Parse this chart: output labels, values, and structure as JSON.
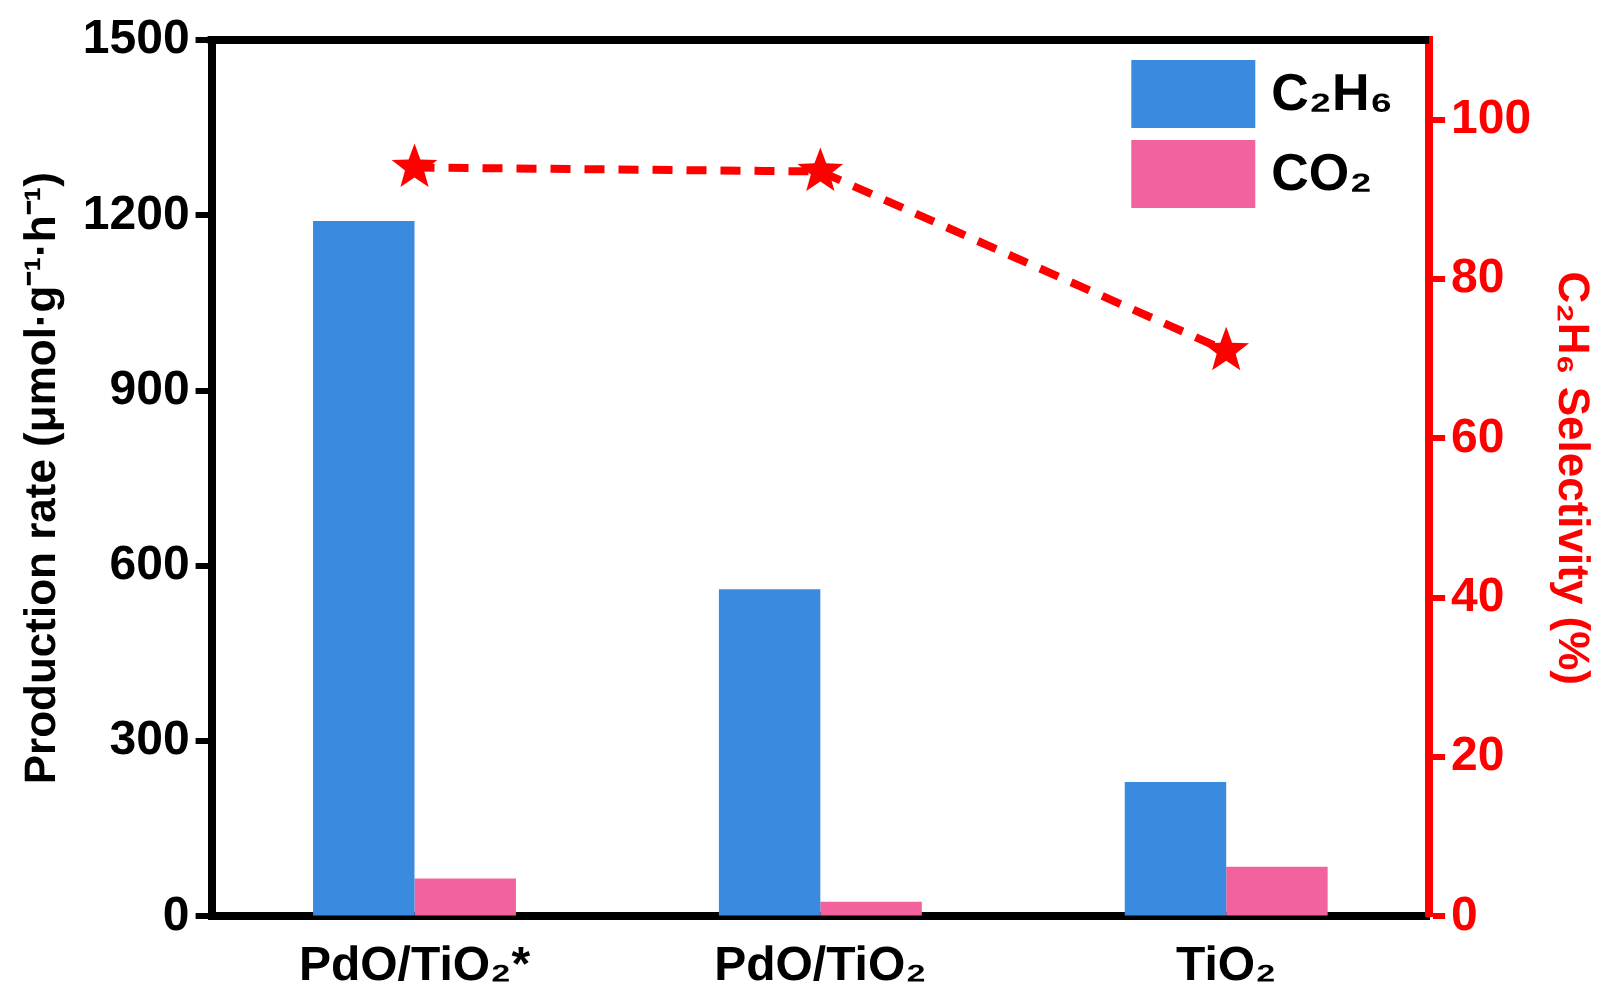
{
  "chart_data": {
    "type": "bar",
    "categories": [
      "PdO/TiO₂*",
      "PdO/TiO₂",
      "TiO₂"
    ],
    "ylabel": "Production rate (μmol·g⁻¹·h⁻¹)",
    "y2label": "C₂H₆ Selectivity (%)",
    "series": [
      {
        "name": "C₂H₆",
        "color": "#3a8ae0",
        "values": [
          1190,
          560,
          230
        ]
      },
      {
        "name": "CO₂",
        "color": "#f2639e",
        "values": [
          65,
          25,
          85
        ]
      },
      {
        "type": "line",
        "axis": "y2",
        "color": "#ff0000",
        "marker": "star",
        "line_style": "dashed",
        "values": [
          94,
          93.5,
          71
        ]
      }
    ],
    "ylim": [
      0,
      1500
    ],
    "yticks": [
      0,
      300,
      600,
      900,
      1200,
      1500
    ],
    "y2lim": [
      0,
      110
    ],
    "y2ticks": [
      0,
      20,
      40,
      60,
      80,
      100
    ],
    "grid": false,
    "legend": "top right"
  }
}
